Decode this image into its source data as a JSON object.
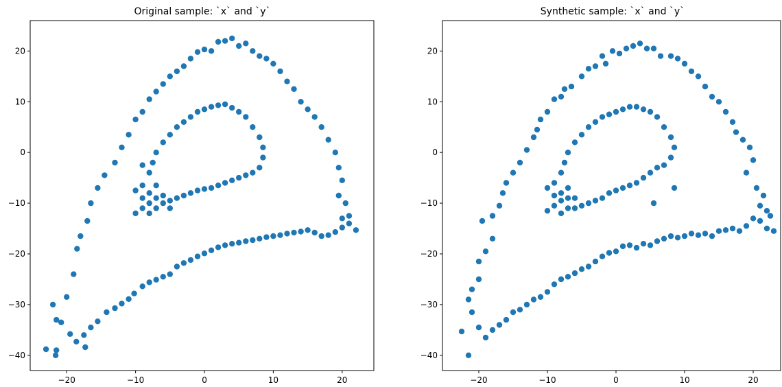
{
  "chart_data": [
    {
      "type": "scatter",
      "title": "Original sample: `x` and `y`",
      "xlabel": "",
      "ylabel": "",
      "xlim": [
        -25.3,
        24.6
      ],
      "ylim": [
        -43,
        26
      ],
      "xticks": [
        -20,
        -10,
        0,
        10,
        20
      ],
      "yticks": [
        -40,
        -30,
        -20,
        -10,
        0,
        10,
        20
      ],
      "xtick_labels": [
        "−20",
        "−10",
        "0",
        "10",
        "20"
      ],
      "ytick_labels": [
        "−40",
        "−30",
        "−20",
        "−10",
        "0",
        "10",
        "20"
      ],
      "grid": false,
      "point_color": "#1f77b4",
      "points": [
        [
          -23.0,
          -38.8
        ],
        [
          -21.5,
          -39.0
        ],
        [
          -21.6,
          -40.0
        ],
        [
          -22.0,
          -30.0
        ],
        [
          -20.8,
          -33.5
        ],
        [
          -19.5,
          -35.8
        ],
        [
          -18.6,
          -37.3
        ],
        [
          -17.5,
          -36.0
        ],
        [
          -17.3,
          -38.4
        ],
        [
          -16.5,
          -34.5
        ],
        [
          -15.5,
          -33.3
        ],
        [
          -14.2,
          -31.5
        ],
        [
          -13.0,
          -30.7
        ],
        [
          -12.0,
          -29.8
        ],
        [
          -11.0,
          -28.9
        ],
        [
          -10.2,
          -27.8
        ],
        [
          -9.0,
          -26.4
        ],
        [
          -8.0,
          -25.6
        ],
        [
          -7.0,
          -25.1
        ],
        [
          -6.0,
          -24.5
        ],
        [
          -5.0,
          -24.0
        ],
        [
          -4.0,
          -22.5
        ],
        [
          -3.0,
          -21.8
        ],
        [
          -2.0,
          -21.2
        ],
        [
          -1.0,
          -20.5
        ],
        [
          0.0,
          -19.9
        ],
        [
          1.0,
          -19.3
        ],
        [
          2.0,
          -18.7
        ],
        [
          3.0,
          -18.3
        ],
        [
          4.0,
          -18.0
        ],
        [
          5.0,
          -17.8
        ],
        [
          6.0,
          -17.5
        ],
        [
          7.0,
          -17.3
        ],
        [
          8.0,
          -17.0
        ],
        [
          9.0,
          -16.7
        ],
        [
          10.0,
          -16.5
        ],
        [
          11.0,
          -16.3
        ],
        [
          12.0,
          -16.0
        ],
        [
          13.0,
          -15.8
        ],
        [
          14.0,
          -15.6
        ],
        [
          15.0,
          -15.3
        ],
        [
          16.0,
          -15.8
        ],
        [
          17.0,
          -16.5
        ],
        [
          18.0,
          -16.3
        ],
        [
          19.0,
          -15.7
        ],
        [
          20.0,
          -14.8
        ],
        [
          21.0,
          -14.0
        ],
        [
          22.0,
          -15.3
        ],
        [
          -21.5,
          -33.0
        ],
        [
          -20.0,
          -28.5
        ],
        [
          -19.0,
          -24.0
        ],
        [
          -18.5,
          -19.0
        ],
        [
          -18.0,
          -16.5
        ],
        [
          -17.0,
          -13.5
        ],
        [
          -16.5,
          -10.0
        ],
        [
          -15.5,
          -7.0
        ],
        [
          -14.5,
          -4.5
        ],
        [
          -13.0,
          -2.0
        ],
        [
          -12.0,
          1.0
        ],
        [
          -11.0,
          3.5
        ],
        [
          -10.0,
          6.5
        ],
        [
          -9.0,
          8.0
        ],
        [
          -8.0,
          10.5
        ],
        [
          -7.0,
          12.0
        ],
        [
          -6.0,
          13.5
        ],
        [
          -5.0,
          15.0
        ],
        [
          -4.0,
          16.0
        ],
        [
          -3.0,
          17.0
        ],
        [
          -2.0,
          18.5
        ],
        [
          -1.0,
          19.8
        ],
        [
          0.0,
          20.3
        ],
        [
          1.0,
          20.0
        ],
        [
          2.0,
          21.8
        ],
        [
          3.0,
          22.0
        ],
        [
          4.0,
          22.5
        ],
        [
          5.0,
          21.0
        ],
        [
          6.0,
          21.5
        ],
        [
          7.0,
          20.0
        ],
        [
          8.0,
          19.0
        ],
        [
          9.0,
          18.5
        ],
        [
          10.0,
          17.5
        ],
        [
          11.0,
          16.0
        ],
        [
          12.0,
          14.0
        ],
        [
          13.0,
          12.5
        ],
        [
          14.0,
          10.0
        ],
        [
          15.0,
          8.5
        ],
        [
          16.0,
          7.0
        ],
        [
          17.0,
          5.0
        ],
        [
          18.0,
          2.5
        ],
        [
          19.0,
          0.0
        ],
        [
          19.5,
          -3.0
        ],
        [
          20.0,
          -5.5
        ],
        [
          19.5,
          -8.5
        ],
        [
          20.5,
          -10.0
        ],
        [
          21.0,
          -12.5
        ],
        [
          20.0,
          -13.0
        ],
        [
          -10.0,
          -12.0
        ],
        [
          -9.0,
          -11.0
        ],
        [
          -8.0,
          -10.0
        ],
        [
          -7.0,
          -9.0
        ],
        [
          -10.0,
          -7.5
        ],
        [
          -9.0,
          -6.5
        ],
        [
          -8.0,
          -4.0
        ],
        [
          -7.5,
          -2.0
        ],
        [
          -7.0,
          0.0
        ],
        [
          -6.0,
          2.0
        ],
        [
          -5.0,
          3.5
        ],
        [
          -4.0,
          5.0
        ],
        [
          -3.0,
          6.0
        ],
        [
          -2.0,
          7.0
        ],
        [
          -1.0,
          8.0
        ],
        [
          0.0,
          8.5
        ],
        [
          1.0,
          9.0
        ],
        [
          2.0,
          9.3
        ],
        [
          3.0,
          9.5
        ],
        [
          4.0,
          8.8
        ],
        [
          5.0,
          8.0
        ],
        [
          6.0,
          7.0
        ],
        [
          7.0,
          5.0
        ],
        [
          8.0,
          3.0
        ],
        [
          8.5,
          1.0
        ],
        [
          8.5,
          -1.0
        ],
        [
          8.0,
          -3.0
        ],
        [
          7.0,
          -4.0
        ],
        [
          6.0,
          -4.5
        ],
        [
          5.0,
          -5.0
        ],
        [
          4.0,
          -5.5
        ],
        [
          3.0,
          -6.0
        ],
        [
          2.0,
          -6.5
        ],
        [
          1.0,
          -7.0
        ],
        [
          0.0,
          -7.2
        ],
        [
          -1.0,
          -7.5
        ],
        [
          -2.0,
          -8.0
        ],
        [
          -3.0,
          -8.5
        ],
        [
          -4.0,
          -9.0
        ],
        [
          -5.0,
          -9.5
        ],
        [
          -6.0,
          -10.0
        ],
        [
          -7.0,
          -11.0
        ],
        [
          -8.0,
          -12.0
        ],
        [
          -8.0,
          -8.0
        ],
        [
          -9.0,
          -9.0
        ],
        [
          -6.0,
          -8.5
        ],
        [
          -7.0,
          -6.5
        ],
        [
          -5.0,
          -11.0
        ],
        [
          -9.0,
          -2.5
        ]
      ]
    },
    {
      "type": "scatter",
      "title": "Synthetic sample: `x` and `y`",
      "xlabel": "",
      "ylabel": "",
      "xlim": [
        -25.3,
        24.0
      ],
      "ylim": [
        -43,
        26
      ],
      "xticks": [
        -20,
        -10,
        0,
        10,
        20
      ],
      "yticks": [
        -40,
        -30,
        -20,
        -10,
        0,
        10,
        20
      ],
      "xtick_labels": [
        "−20",
        "−10",
        "0",
        "10",
        "20"
      ],
      "ytick_labels": [
        "−40",
        "−30",
        "−20",
        "−10",
        "0",
        "10",
        "20"
      ],
      "grid": false,
      "point_color": "#1f77b4",
      "points": [
        [
          -22.5,
          -35.3
        ],
        [
          -21.5,
          -40.0
        ],
        [
          -21.0,
          -31.5
        ],
        [
          -20.0,
          -34.5
        ],
        [
          -19.0,
          -36.5
        ],
        [
          -18.0,
          -35.0
        ],
        [
          -17.0,
          -34.0
        ],
        [
          -16.0,
          -33.0
        ],
        [
          -15.0,
          -31.5
        ],
        [
          -14.0,
          -31.0
        ],
        [
          -13.0,
          -30.0
        ],
        [
          -12.0,
          -29.0
        ],
        [
          -11.0,
          -28.5
        ],
        [
          -10.0,
          -27.5
        ],
        [
          -9.0,
          -26.0
        ],
        [
          -8.0,
          -25.0
        ],
        [
          -7.0,
          -24.5
        ],
        [
          -6.0,
          -23.8
        ],
        [
          -5.0,
          -23.0
        ],
        [
          -4.0,
          -22.5
        ],
        [
          -3.0,
          -21.5
        ],
        [
          -2.0,
          -20.5
        ],
        [
          -1.0,
          -19.8
        ],
        [
          0.0,
          -19.5
        ],
        [
          1.0,
          -18.5
        ],
        [
          2.0,
          -18.3
        ],
        [
          3.0,
          -18.8
        ],
        [
          4.0,
          -18.0
        ],
        [
          5.0,
          -18.3
        ],
        [
          6.0,
          -17.5
        ],
        [
          7.0,
          -17.0
        ],
        [
          8.0,
          -16.5
        ],
        [
          9.0,
          -16.8
        ],
        [
          10.0,
          -16.5
        ],
        [
          11.0,
          -16.0
        ],
        [
          12.0,
          -16.3
        ],
        [
          13.0,
          -16.0
        ],
        [
          14.0,
          -16.5
        ],
        [
          15.0,
          -15.5
        ],
        [
          16.0,
          -15.3
        ],
        [
          17.0,
          -15.0
        ],
        [
          18.0,
          -15.5
        ],
        [
          19.0,
          -14.5
        ],
        [
          20.0,
          -13.0
        ],
        [
          21.0,
          -13.5
        ],
        [
          22.0,
          -15.0
        ],
        [
          23.0,
          -15.5
        ],
        [
          22.5,
          -12.5
        ],
        [
          -21.5,
          -29.0
        ],
        [
          -21.0,
          -27.0
        ],
        [
          -20.0,
          -25.0
        ],
        [
          -20.0,
          -21.5
        ],
        [
          -19.0,
          -19.5
        ],
        [
          -18.0,
          -17.0
        ],
        [
          -19.5,
          -13.5
        ],
        [
          -18.0,
          -12.5
        ],
        [
          -17.0,
          -10.5
        ],
        [
          -16.5,
          -8.0
        ],
        [
          -16.0,
          -6.0
        ],
        [
          -15.0,
          -4.0
        ],
        [
          -14.0,
          -2.0
        ],
        [
          -13.0,
          0.5
        ],
        [
          -12.0,
          3.0
        ],
        [
          -11.5,
          4.5
        ],
        [
          -11.0,
          6.5
        ],
        [
          -10.0,
          8.0
        ],
        [
          -9.0,
          10.5
        ],
        [
          -8.0,
          11.0
        ],
        [
          -7.5,
          12.5
        ],
        [
          -6.5,
          13.0
        ],
        [
          -5.0,
          15.0
        ],
        [
          -4.0,
          16.5
        ],
        [
          -3.0,
          17.0
        ],
        [
          -2.0,
          19.0
        ],
        [
          -1.5,
          17.5
        ],
        [
          -0.5,
          20.0
        ],
        [
          0.5,
          19.5
        ],
        [
          1.5,
          20.5
        ],
        [
          2.5,
          21.0
        ],
        [
          3.5,
          21.5
        ],
        [
          4.5,
          20.5
        ],
        [
          5.5,
          20.5
        ],
        [
          6.5,
          19.0
        ],
        [
          8.0,
          19.0
        ],
        [
          9.0,
          18.5
        ],
        [
          10.0,
          17.5
        ],
        [
          11.0,
          16.0
        ],
        [
          12.0,
          15.0
        ],
        [
          13.0,
          13.0
        ],
        [
          14.0,
          11.0
        ],
        [
          15.0,
          10.0
        ],
        [
          16.0,
          8.0
        ],
        [
          17.0,
          6.0
        ],
        [
          17.5,
          4.0
        ],
        [
          18.5,
          2.5
        ],
        [
          19.5,
          1.0
        ],
        [
          20.0,
          -1.5
        ],
        [
          19.0,
          -4.0
        ],
        [
          20.5,
          -7.0
        ],
        [
          21.5,
          -8.5
        ],
        [
          21.0,
          -10.5
        ],
        [
          22.0,
          -11.5
        ],
        [
          -10.0,
          -11.5
        ],
        [
          -9.0,
          -10.5
        ],
        [
          -8.0,
          -9.5
        ],
        [
          -7.0,
          -9.0
        ],
        [
          -10.0,
          -7.0
        ],
        [
          -9.0,
          -6.0
        ],
        [
          -8.0,
          -4.0
        ],
        [
          -7.5,
          -2.0
        ],
        [
          -7.0,
          0.0
        ],
        [
          -6.0,
          2.0
        ],
        [
          -5.0,
          3.5
        ],
        [
          -4.0,
          5.0
        ],
        [
          -3.0,
          6.0
        ],
        [
          -2.0,
          7.0
        ],
        [
          -1.0,
          7.5
        ],
        [
          0.0,
          8.0
        ],
        [
          1.0,
          8.5
        ],
        [
          2.0,
          9.0
        ],
        [
          3.0,
          9.0
        ],
        [
          4.0,
          8.5
        ],
        [
          5.0,
          8.0
        ],
        [
          6.0,
          7.0
        ],
        [
          7.0,
          5.0
        ],
        [
          8.0,
          3.0
        ],
        [
          8.5,
          1.0
        ],
        [
          8.0,
          -1.0
        ],
        [
          7.0,
          -2.5
        ],
        [
          6.0,
          -3.0
        ],
        [
          5.0,
          -4.0
        ],
        [
          4.0,
          -5.0
        ],
        [
          3.0,
          -6.0
        ],
        [
          2.0,
          -6.5
        ],
        [
          1.0,
          -7.0
        ],
        [
          0.0,
          -7.5
        ],
        [
          -1.0,
          -8.0
        ],
        [
          -2.0,
          -9.0
        ],
        [
          -3.0,
          -9.5
        ],
        [
          -4.0,
          -10.0
        ],
        [
          -5.0,
          -10.5
        ],
        [
          -6.0,
          -11.0
        ],
        [
          -7.0,
          -11.0
        ],
        [
          -8.0,
          -12.0
        ],
        [
          -8.0,
          -8.0
        ],
        [
          -9.0,
          -8.5
        ],
        [
          -6.0,
          -9.0
        ],
        [
          -7.0,
          -7.0
        ],
        [
          8.5,
          -7.0
        ],
        [
          5.5,
          -10.0
        ]
      ]
    }
  ]
}
